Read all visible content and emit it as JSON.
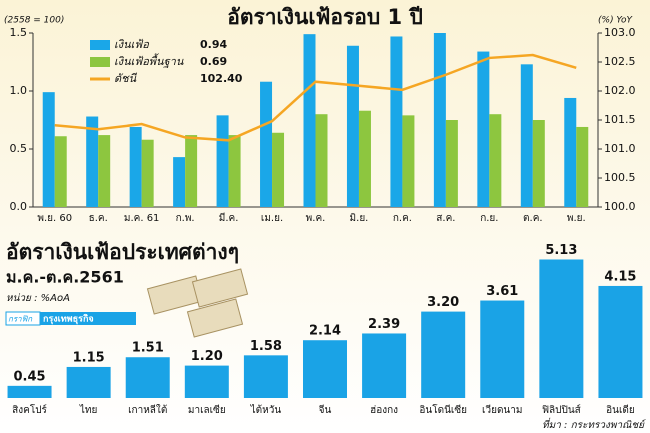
{
  "chart_data": [
    {
      "type": "bar_line",
      "title": "อัตราเงินเฟ้อรอบ 1 ปี",
      "y_label": "(2558 = 100)",
      "y2_label": "(%) YoY",
      "categories": [
        "พ.ย. 60",
        "ธ.ค.",
        "ม.ค. 61",
        "ก.พ.",
        "มี.ค.",
        "เม.ย.",
        "พ.ค.",
        "มิ.ย.",
        "ก.ค.",
        "ส.ค.",
        "ก.ย.",
        "ต.ค.",
        "พ.ย."
      ],
      "series": [
        {
          "name": "เงินเฟ้อ",
          "color": "#1aa7e8",
          "kind": "bar",
          "latest": 0.94,
          "values": [
            0.99,
            0.78,
            0.69,
            0.43,
            0.79,
            1.08,
            1.49,
            1.39,
            1.47,
            1.5,
            1.34,
            1.23,
            0.94
          ]
        },
        {
          "name": "เงินเฟ้อพื้นฐาน",
          "color": "#8dc63f",
          "kind": "bar",
          "latest": 0.69,
          "values": [
            0.61,
            0.62,
            0.58,
            0.62,
            0.62,
            0.64,
            0.8,
            0.83,
            0.79,
            0.75,
            0.8,
            0.75,
            0.69
          ]
        },
        {
          "name": "ดัชนี",
          "color": "#f5a623",
          "kind": "line",
          "axis": "y2",
          "latest": {
            "value": 102.4,
            "label": "102.40"
          },
          "values": [
            101.41,
            101.34,
            101.43,
            101.2,
            101.15,
            101.48,
            102.16,
            102.09,
            102.02,
            102.28,
            102.57,
            102.62,
            102.4
          ]
        }
      ],
      "ylim": [
        0,
        1.5
      ],
      "yticks": [
        {
          "value": 0,
          "label": "0.0"
        },
        0.5,
        {
          "value": 1,
          "label": "1.0"
        },
        1.5
      ],
      "y2lim": [
        100,
        103
      ],
      "y2ticks": [
        {
          "value": 100,
          "label": "100.0"
        },
        100.5,
        {
          "value": 101,
          "label": "101.0"
        },
        101.5,
        {
          "value": 102,
          "label": "102.0"
        },
        102.5,
        {
          "value": 103,
          "label": "103.0"
        }
      ]
    },
    {
      "type": "bar",
      "title": "อัตราเงินเฟ้อประเทศต่างๆ",
      "subtitle": "ม.ค.-ต.ค.2561",
      "unit": "หน่วย : %AoA",
      "source": "ที่มา : กระทรวงพาณิชย์",
      "credit": "กราฟิก",
      "publisher": "กรุงเทพธุรกิจ",
      "color": "#1aa3e6",
      "categories": [
        "สิงคโปร์",
        "ไทย",
        "เกาหลีใต้",
        "มาเลเซีย",
        "ไต้หวัน",
        "จีน",
        "ฮ่องกง",
        "อินโดนีเซีย",
        "เวียดนาม",
        "ฟิลิปปินส์",
        "อินเดีย"
      ],
      "values": [
        0.45,
        1.15,
        1.51,
        1.2,
        1.58,
        2.14,
        2.39,
        3.2,
        3.61,
        5.13,
        4.15
      ],
      "value_labels": [
        "0.45",
        "1.15",
        "1.51",
        "1.20",
        "1.58",
        "2.14",
        "2.39",
        "3.20",
        "3.61",
        "5.13",
        "4.15"
      ]
    }
  ]
}
